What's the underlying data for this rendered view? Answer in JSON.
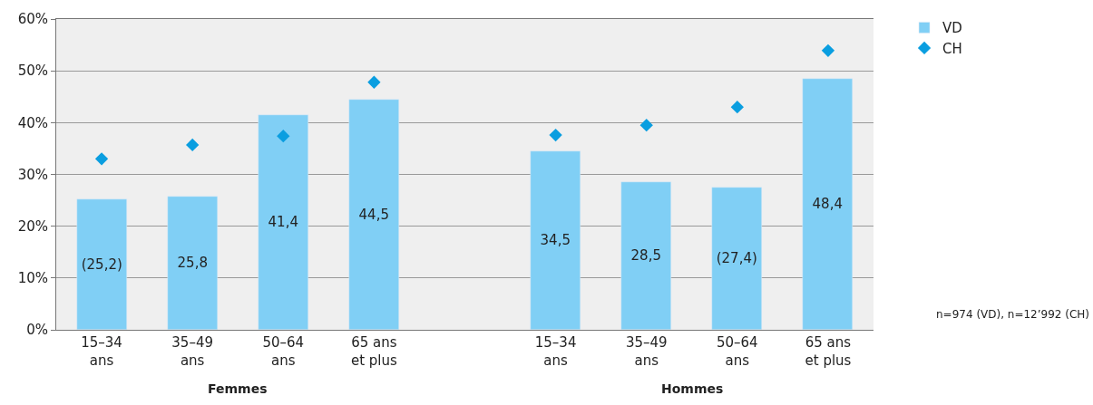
{
  "chart_data": {
    "type": "bar",
    "categories": [
      "15–34\nans",
      "35–49\nans",
      "50–64\nans",
      "65 ans\net plus",
      null,
      "15–34\nans",
      "35–49\nans",
      "50–64\nans",
      "65 ans\net plus"
    ],
    "series": [
      {
        "name": "VD",
        "type": "bar",
        "color": "#80cff5",
        "values": [
          25.2,
          25.8,
          41.4,
          44.5,
          null,
          34.5,
          28.5,
          27.4,
          48.4
        ],
        "value_labels": [
          "(25,2)",
          "25,8",
          "41,4",
          "44,5",
          null,
          "34,5",
          "28,5",
          "(27,4)",
          "48,4"
        ]
      },
      {
        "name": "CH",
        "type": "scatter",
        "color": "#0a9ee0",
        "marker": "diamond",
        "values": [
          33.0,
          35.7,
          37.4,
          47.8,
          null,
          37.6,
          39.5,
          43.0,
          53.9
        ]
      }
    ],
    "ylim": [
      0,
      60
    ],
    "yticks": [
      {
        "value": 0,
        "label": "0%"
      },
      {
        "value": 10,
        "label": "10%"
      },
      {
        "value": 20,
        "label": "20%"
      },
      {
        "value": 30,
        "label": "30%"
      },
      {
        "value": 40,
        "label": "40%"
      },
      {
        "value": 50,
        "label": "50%"
      },
      {
        "value": 60,
        "label": "60%"
      }
    ],
    "grid": "y",
    "legend": "top right",
    "annotations": [
      "Femmes",
      "Hommes",
      "n=974 (VD), n=12’992 (CH)"
    ]
  }
}
